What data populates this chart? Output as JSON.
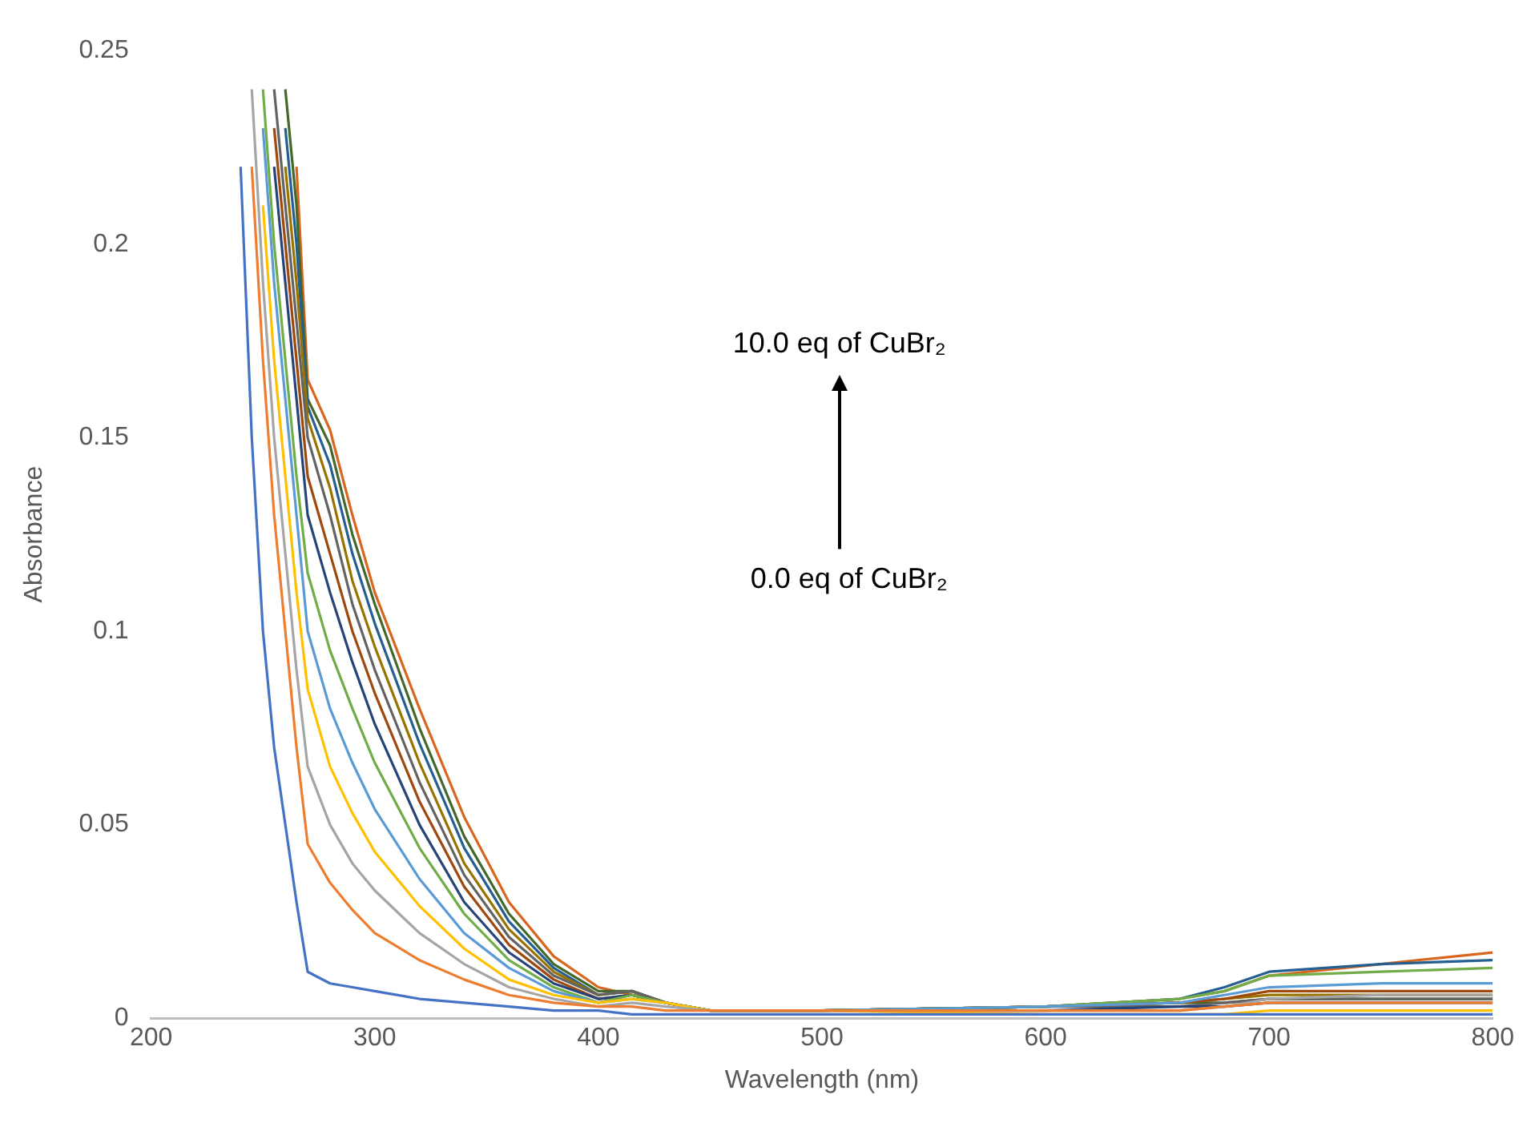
{
  "chart_data": {
    "type": "line",
    "xlabel": "Wavelength (nm)",
    "ylabel": "Absorbance",
    "xlim": [
      200,
      800
    ],
    "xticks": [
      200,
      300,
      400,
      500,
      600,
      700,
      800
    ],
    "ylim": [
      0,
      0.25
    ],
    "yticks": [
      0,
      0.05,
      0.1,
      0.15,
      0.2,
      0.25
    ],
    "grid": false,
    "legend": false,
    "marker": "none",
    "line_style": "solid",
    "annotations": [
      "10.0 eq of CuBr₂",
      "0.0 eq of CuBr₂"
    ],
    "x": [
      240,
      245,
      250,
      255,
      260,
      265,
      270,
      280,
      290,
      300,
      320,
      340,
      360,
      380,
      400,
      415,
      430,
      450,
      500,
      600,
      660,
      680,
      700,
      750,
      800
    ],
    "series": [
      {
        "color": "#4472c4",
        "values": [
          0.22,
          0.15,
          0.1,
          0.07,
          0.05,
          0.03,
          0.012,
          0.009,
          0.008,
          0.007,
          0.005,
          0.004,
          0.003,
          0.002,
          0.002,
          0.001,
          0.001,
          0.001,
          0.001,
          0.001,
          0.001,
          0.001,
          0.001,
          0.001,
          0.001
        ]
      },
      {
        "color": "#ed7d31",
        "values": [
          null,
          0.22,
          0.17,
          0.13,
          0.1,
          0.07,
          0.045,
          0.035,
          0.028,
          0.022,
          0.015,
          0.01,
          0.006,
          0.004,
          0.003,
          0.003,
          0.002,
          0.002,
          0.002,
          0.002,
          0.002,
          0.003,
          0.004,
          0.004,
          0.004
        ]
      },
      {
        "color": "#a5a5a5",
        "values": [
          null,
          0.24,
          0.19,
          0.15,
          0.12,
          0.09,
          0.065,
          0.05,
          0.04,
          0.033,
          0.022,
          0.014,
          0.008,
          0.005,
          0.003,
          0.004,
          0.003,
          0.002,
          0.002,
          0.002,
          0.002,
          0.003,
          0.005,
          0.006,
          0.006
        ]
      },
      {
        "color": "#ffc000",
        "values": [
          null,
          null,
          0.21,
          0.17,
          0.14,
          0.11,
          0.085,
          0.065,
          0.053,
          0.043,
          0.029,
          0.018,
          0.01,
          0.006,
          0.004,
          0.005,
          0.004,
          0.002,
          0.002,
          0.001,
          0.001,
          0.001,
          0.002,
          0.002,
          0.002
        ]
      },
      {
        "color": "#5b9bd5",
        "values": [
          null,
          null,
          0.23,
          0.19,
          0.16,
          0.13,
          0.1,
          0.08,
          0.066,
          0.054,
          0.036,
          0.022,
          0.013,
          0.007,
          0.004,
          0.005,
          0.004,
          0.002,
          0.002,
          0.003,
          0.004,
          0.006,
          0.008,
          0.009,
          0.009
        ]
      },
      {
        "color": "#70ad47",
        "values": [
          null,
          null,
          0.24,
          0.2,
          0.17,
          0.14,
          0.115,
          0.095,
          0.08,
          0.066,
          0.044,
          0.027,
          0.015,
          0.008,
          0.004,
          0.006,
          0.004,
          0.002,
          0.002,
          0.003,
          0.005,
          0.007,
          0.011,
          0.012,
          0.013
        ]
      },
      {
        "color": "#264478",
        "values": [
          null,
          null,
          null,
          0.22,
          0.19,
          0.16,
          0.13,
          0.11,
          0.092,
          0.076,
          0.05,
          0.03,
          0.017,
          0.009,
          0.005,
          0.006,
          0.004,
          0.002,
          0.002,
          0.002,
          0.003,
          0.003,
          0.004,
          0.004,
          0.004
        ]
      },
      {
        "color": "#9e480e",
        "values": [
          null,
          null,
          null,
          0.23,
          0.2,
          0.17,
          0.14,
          0.12,
          0.1,
          0.084,
          0.056,
          0.034,
          0.019,
          0.01,
          0.005,
          0.006,
          0.004,
          0.002,
          0.002,
          0.003,
          0.004,
          0.005,
          0.007,
          0.007,
          0.007
        ]
      },
      {
        "color": "#636363",
        "values": [
          null,
          null,
          null,
          0.24,
          0.21,
          0.18,
          0.15,
          0.13,
          0.107,
          0.09,
          0.061,
          0.037,
          0.021,
          0.011,
          0.006,
          0.007,
          0.004,
          0.002,
          0.002,
          0.003,
          0.003,
          0.004,
          0.005,
          0.005,
          0.005
        ]
      },
      {
        "color": "#997300",
        "values": [
          null,
          null,
          null,
          null,
          0.22,
          0.19,
          0.155,
          0.137,
          0.113,
          0.096,
          0.066,
          0.04,
          0.023,
          0.012,
          0.006,
          0.007,
          0.004,
          0.002,
          0.002,
          0.003,
          0.004,
          0.005,
          0.006,
          0.006,
          0.006
        ]
      },
      {
        "color": "#255e91",
        "values": [
          null,
          null,
          null,
          null,
          0.23,
          0.2,
          0.158,
          0.143,
          0.12,
          0.102,
          0.071,
          0.044,
          0.025,
          0.013,
          0.006,
          0.007,
          0.004,
          0.002,
          0.002,
          0.003,
          0.005,
          0.008,
          0.012,
          0.014,
          0.015
        ]
      },
      {
        "color": "#43682b",
        "values": [
          null,
          null,
          null,
          null,
          0.24,
          0.21,
          0.16,
          0.148,
          0.125,
          0.107,
          0.075,
          0.047,
          0.027,
          0.014,
          0.007,
          0.007,
          0.004,
          0.002,
          0.002,
          0.003,
          0.004,
          0.004,
          0.005,
          0.005,
          0.005
        ]
      },
      {
        "color": "#d9661f",
        "values": [
          null,
          null,
          null,
          null,
          null,
          0.22,
          0.165,
          0.152,
          0.13,
          0.11,
          0.08,
          0.052,
          0.03,
          0.016,
          0.008,
          0.006,
          0.004,
          0.002,
          0.002,
          0.003,
          0.005,
          0.007,
          0.011,
          0.014,
          0.017
        ]
      }
    ]
  }
}
